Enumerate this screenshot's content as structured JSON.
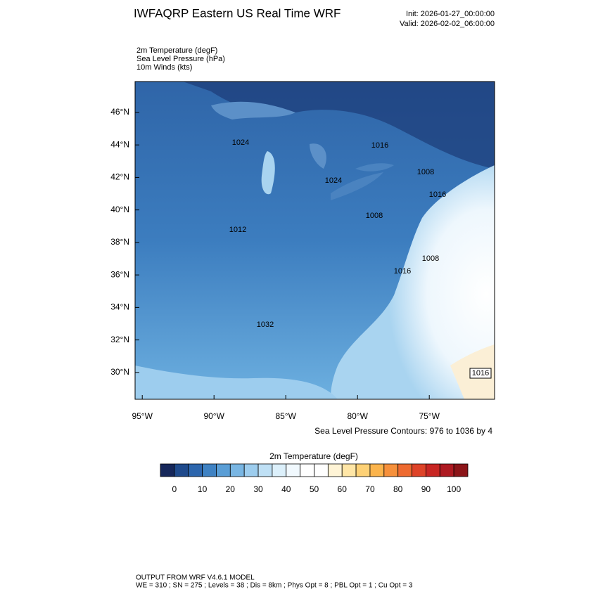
{
  "header": {
    "title": "IWFAQRP Eastern US Real Time WRF",
    "init": "Init: 2026-01-27_00:00:00",
    "valid": "Valid: 2026-02-02_06:00:00"
  },
  "fields": [
    "2m Temperature   (degF)",
    "Sea Level Pressure   (hPa)",
    "10m Winds   (kts)"
  ],
  "map": {
    "xlim": [
      -95.5,
      -70.45
    ],
    "ylim": [
      28.35,
      47.9
    ],
    "xticks": [
      {
        "value": -95,
        "label": "95°W"
      },
      {
        "value": -90,
        "label": "90°W"
      },
      {
        "value": -85,
        "label": "85°W"
      },
      {
        "value": -80,
        "label": "80°W"
      },
      {
        "value": -75,
        "label": "75°W"
      }
    ],
    "yticks": [
      {
        "value": 30,
        "label": "30°N"
      },
      {
        "value": 32,
        "label": "32°N"
      },
      {
        "value": 34,
        "label": "34°N"
      },
      {
        "value": 36,
        "label": "36°N"
      },
      {
        "value": 38,
        "label": "38°N"
      },
      {
        "value": 40,
        "label": "40°N"
      },
      {
        "value": 42,
        "label": "42°N"
      },
      {
        "value": 44,
        "label": "44°N"
      },
      {
        "value": 46,
        "label": "46°N"
      }
    ],
    "contour_labels": [
      "1024",
      "1016",
      "1008",
      "1024",
      "1016",
      "1008",
      "1012",
      "1008",
      "1032",
      "1016",
      "1016"
    ],
    "contour_note": "Sea Level Pressure Contours: 976 to 1036 by 4"
  },
  "colorbar": {
    "title": "2m Temperature  (degF)",
    "lim": [
      -5,
      105
    ],
    "ticks": [
      0,
      10,
      20,
      30,
      40,
      50,
      60,
      70,
      80,
      90,
      100
    ],
    "colors": [
      "#16275a",
      "#1f4a8c",
      "#2d66ad",
      "#3f82c3",
      "#5a9ed6",
      "#79b6e3",
      "#9dcdee",
      "#bfe0f5",
      "#dcf0fb",
      "#f1f9fe",
      "#ffffff",
      "#ffffff",
      "#fff4d6",
      "#ffe6a6",
      "#fdd176",
      "#fbb44c",
      "#f6903b",
      "#ee6a30",
      "#de4328",
      "#c82623",
      "#ae1a22",
      "#8c1519"
    ]
  },
  "footer": {
    "line1": "OUTPUT FROM WRF V4.6.1 MODEL",
    "line2": "WE = 310 ; SN = 275 ; Levels = 38 ; Dis = 8km ; Phys Opt = 8 ; PBL Opt = 1 ; Cu Opt = 3"
  }
}
